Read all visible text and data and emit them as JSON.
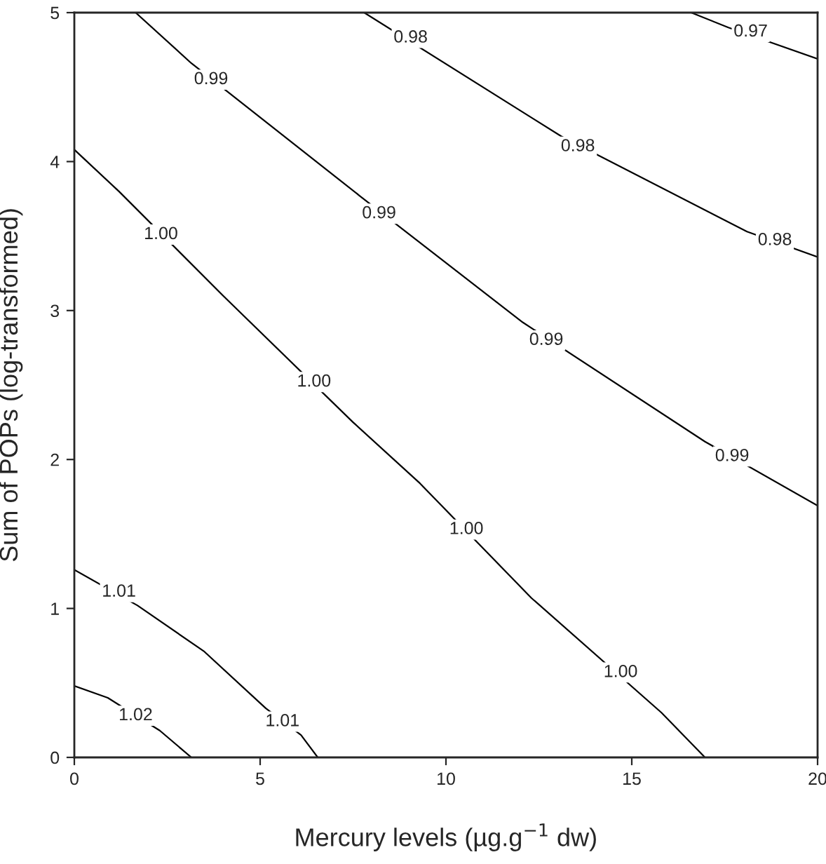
{
  "chart_data": {
    "type": "line",
    "xlabel": "Mercury levels (µg.g$^{−1}$ dw)",
    "ylabel": "Sum of POPs (log-transformed)",
    "xlim": [
      0,
      20
    ],
    "ylim": [
      0,
      5
    ],
    "xticks": [
      0,
      5,
      10,
      15,
      20
    ],
    "yticks": [
      0,
      1,
      2,
      3,
      4,
      5
    ],
    "series": [
      {
        "color": "#000000",
        "x": [
          0,
          0.9,
          2.3,
          3.15
        ],
        "values": [
          0.48,
          0.4,
          0.18,
          0
        ]
      },
      {
        "color": "#000000",
        "x": [
          0,
          1.7,
          3.5,
          5.15,
          6.1,
          6.55
        ],
        "values": [
          1.26,
          1.02,
          0.71,
          0.33,
          0.15,
          0
        ]
      },
      {
        "color": "#000000",
        "x": [
          0,
          1.2,
          4,
          7.5,
          9.3,
          12.3,
          15.8,
          16.97
        ],
        "values": [
          4.08,
          3.8,
          3.1,
          2.25,
          1.84,
          1.07,
          0.3,
          0
        ]
      },
      {
        "color": "#000000",
        "x": [
          1.65,
          3.15,
          7.68,
          12.07,
          16.97,
          20
        ],
        "values": [
          5,
          4.66,
          3.77,
          2.92,
          2.12,
          1.69
        ]
      },
      {
        "color": "#000000",
        "x": [
          7.8,
          13.1,
          18.1,
          20
        ],
        "values": [
          5,
          4.17,
          3.53,
          3.36
        ]
      },
      {
        "color": "#000000",
        "x": [
          16.6,
          17.6,
          20
        ],
        "values": [
          5,
          4.9,
          4.69
        ]
      }
    ],
    "annotations": [
      {
        "text": "1.02",
        "x": 1.65,
        "y": 0.28
      },
      {
        "text": "1.01",
        "x": 1.2,
        "y": 1.11
      },
      {
        "text": "1.01",
        "x": 5.6,
        "y": 0.24
      },
      {
        "text": "1.00",
        "x": 2.33,
        "y": 3.51
      },
      {
        "text": "1.00",
        "x": 6.45,
        "y": 2.52
      },
      {
        "text": "1.00",
        "x": 10.55,
        "y": 1.53
      },
      {
        "text": "1.00",
        "x": 14.7,
        "y": 0.57
      },
      {
        "text": "0.99",
        "x": 3.68,
        "y": 4.55
      },
      {
        "text": "0.99",
        "x": 8.2,
        "y": 3.65
      },
      {
        "text": "0.99",
        "x": 12.7,
        "y": 2.8
      },
      {
        "text": "0.99",
        "x": 17.7,
        "y": 2.02
      },
      {
        "text": "0.98",
        "x": 9.05,
        "y": 4.83
      },
      {
        "text": "0.98",
        "x": 13.55,
        "y": 4.1
      },
      {
        "text": "0.98",
        "x": 18.85,
        "y": 3.47
      },
      {
        "text": "0.97",
        "x": 18.2,
        "y": 4.87
      }
    ]
  }
}
